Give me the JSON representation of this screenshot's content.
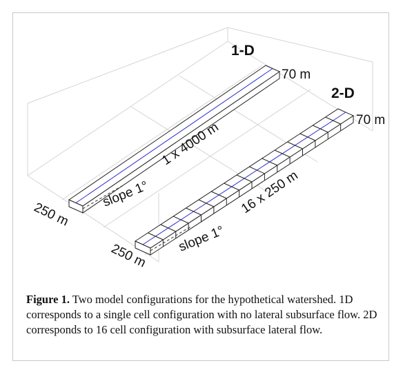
{
  "figure": {
    "labels": {
      "one_d": "1-D",
      "one_d_width": "70 m",
      "two_d": "2-D",
      "two_d_width": "70 m",
      "one_d_length": "1 x 4000 m",
      "one_d_slope": "slope 1°",
      "one_d_end": "250 m",
      "two_d_length": "16 x 250 m",
      "two_d_slope": "slope 1°",
      "two_d_end": "250 m"
    },
    "caption": {
      "label": "Figure 1.",
      "text": " Two model configurations for the hypothetical watershed. 1D corresponds to a single cell configuration with no lateral subsurface flow. 2D corresponds to 16 cell configuration with subsurface lateral flow."
    }
  }
}
